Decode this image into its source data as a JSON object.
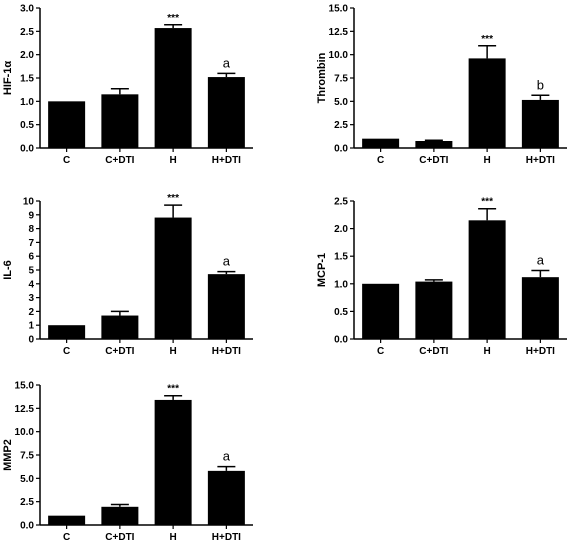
{
  "chart_data": [
    {
      "type": "bar",
      "ylabel": "HIF-1α",
      "categories": [
        "C",
        "C+DTI",
        "H",
        "H+DTI"
      ],
      "values": [
        1.0,
        1.15,
        2.57,
        1.52
      ],
      "errors": [
        0.0,
        0.12,
        0.07,
        0.08
      ],
      "annotations": [
        "",
        "",
        "***",
        "a"
      ],
      "ylim": [
        0,
        3.0
      ],
      "yticks": [
        "0.0",
        "0.5",
        "1.0",
        "1.5",
        "2.0",
        "2.5",
        "3.0"
      ],
      "grid": false
    },
    {
      "type": "bar",
      "ylabel": "Thrombin",
      "categories": [
        "C",
        "C+DTI",
        "H",
        "H+DTI"
      ],
      "values": [
        1.0,
        0.75,
        9.6,
        5.15
      ],
      "errors": [
        0.0,
        0.08,
        1.35,
        0.5
      ],
      "annotations": [
        "",
        "",
        "***",
        "b"
      ],
      "ylim": [
        0,
        15.0
      ],
      "yticks": [
        "0.0",
        "2.5",
        "5.0",
        "7.5",
        "10.0",
        "12.5",
        "15.0"
      ],
      "grid": false
    },
    {
      "type": "bar",
      "ylabel": "IL-6",
      "categories": [
        "C",
        "C+DTI",
        "H",
        "H+DTI"
      ],
      "values": [
        1.0,
        1.7,
        8.8,
        4.7
      ],
      "errors": [
        0.0,
        0.3,
        0.9,
        0.18
      ],
      "annotations": [
        "",
        "",
        "***",
        "a"
      ],
      "ylim": [
        0,
        10
      ],
      "yticks": [
        "0",
        "1",
        "2",
        "3",
        "4",
        "5",
        "6",
        "7",
        "8",
        "9",
        "10"
      ],
      "grid": false
    },
    {
      "type": "bar",
      "ylabel": "MCP-1",
      "categories": [
        "C",
        "C+DTI",
        "H",
        "H+DTI"
      ],
      "values": [
        1.0,
        1.04,
        2.15,
        1.12
      ],
      "errors": [
        0.0,
        0.03,
        0.21,
        0.12
      ],
      "annotations": [
        "",
        "",
        "***",
        "a"
      ],
      "ylim": [
        0,
        2.5
      ],
      "yticks": [
        "0.0",
        "0.5",
        "1.0",
        "1.5",
        "2.0",
        "2.5"
      ],
      "grid": false
    },
    {
      "type": "bar",
      "ylabel": "MMP2",
      "categories": [
        "C",
        "C+DTI",
        "H",
        "H+DTI"
      ],
      "values": [
        1.0,
        1.95,
        13.4,
        5.8
      ],
      "errors": [
        0.0,
        0.25,
        0.45,
        0.45
      ],
      "annotations": [
        "",
        "",
        "***",
        "a"
      ],
      "ylim": [
        0,
        15.0
      ],
      "yticks": [
        "0.0",
        "2.5",
        "5.0",
        "7.5",
        "10.0",
        "12.5",
        "15.0"
      ],
      "grid": false
    }
  ]
}
